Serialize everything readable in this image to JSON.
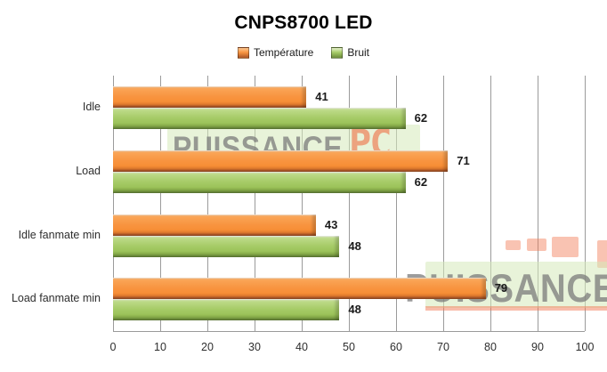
{
  "title": "CNPS8700 LED",
  "legend": {
    "items": [
      {
        "label": "Température",
        "color": "#F79646"
      },
      {
        "label": "Bruit",
        "color": "#9BBB59"
      }
    ],
    "position": "top-center"
  },
  "watermark": {
    "brand_text": "PUISSANCE",
    "brand_suffix": "PC",
    "text_color": "#767676",
    "accent_color": "#EE6034",
    "box_color": "#D5E9BA"
  },
  "colors": {
    "temperature_bar": "#F79646",
    "bruit_bar": "#9BBB59",
    "gridline": "#9B9B9B",
    "background": "#FFFFFF",
    "text": "#1A1A1A"
  },
  "chart_data": {
    "type": "bar",
    "orientation": "horizontal",
    "title": "CNPS8700 LED",
    "categories": [
      "Idle",
      "Load",
      "Idle fanmate  min",
      "Load fanmate  min"
    ],
    "series": [
      {
        "name": "Température",
        "color": "#F79646",
        "values": [
          41,
          71,
          43,
          79
        ]
      },
      {
        "name": "Bruit",
        "color": "#9BBB59",
        "values": [
          62,
          62,
          48,
          48
        ]
      }
    ],
    "xlabel": "",
    "ylabel": "",
    "xlim": [
      0,
      100
    ],
    "xticks": [
      0,
      10,
      20,
      30,
      40,
      50,
      60,
      70,
      80,
      90,
      100
    ],
    "grid": "vertical",
    "legend_position": "top",
    "value_labels": true
  }
}
